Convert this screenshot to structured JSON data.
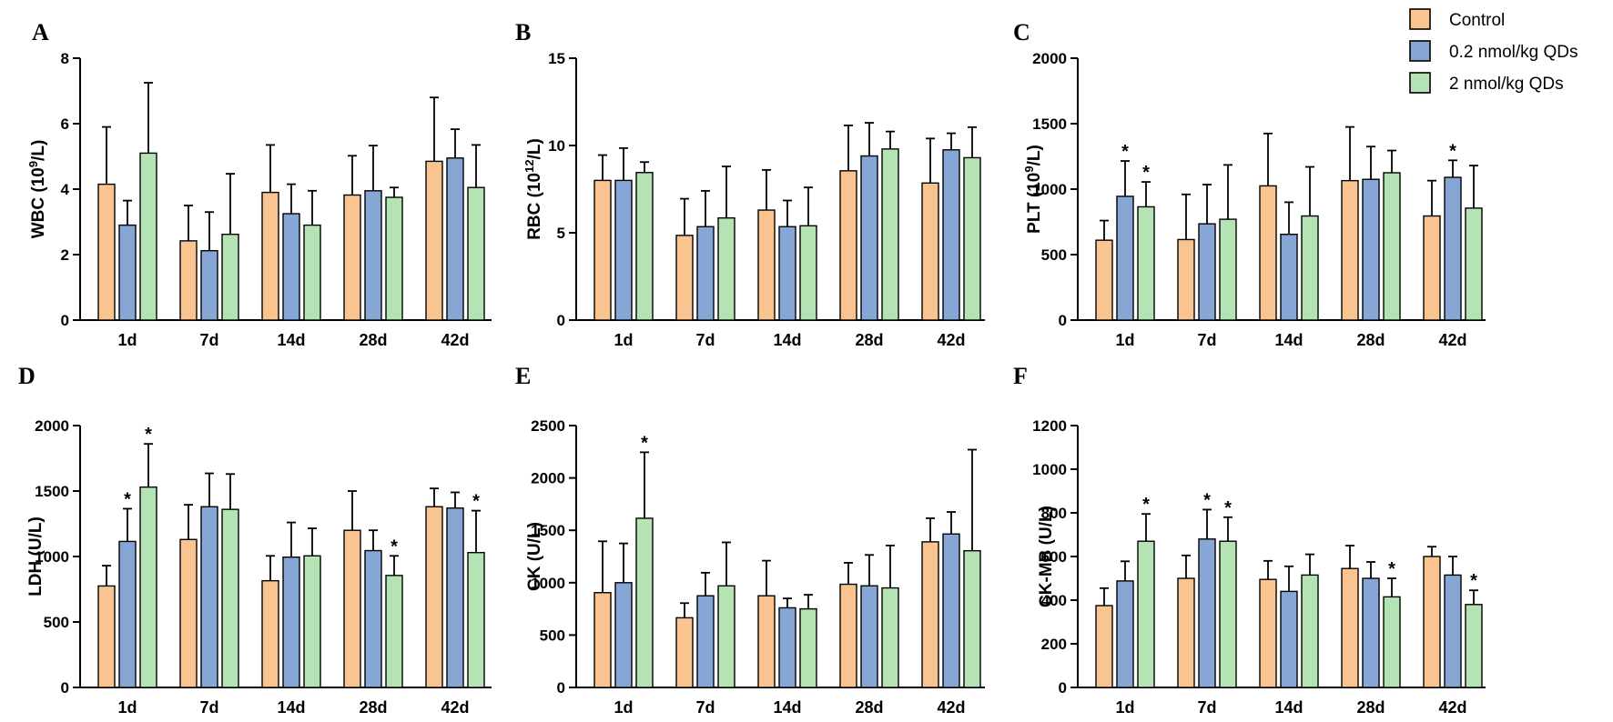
{
  "legend": [
    {
      "label": "Control",
      "color": "#f9c48f"
    },
    {
      "label": "0.2 nmol/kg QDs",
      "color": "#86a6d6"
    },
    {
      "label": "2 nmol/kg QDs",
      "color": "#b4e3b4"
    }
  ],
  "chart_data": [
    {
      "type": "bar",
      "panel": "A",
      "ylabel": {
        "pre": "WBC (10",
        "sup": "9",
        "post": "/L)"
      },
      "categories": [
        "1d",
        "7d",
        "14d",
        "28d",
        "42d"
      ],
      "ylim": [
        0,
        8
      ],
      "yticks": [
        0,
        2,
        4,
        6,
        8
      ],
      "series": [
        {
          "name": "Control",
          "values": [
            4.15,
            2.42,
            3.9,
            3.82,
            4.85
          ],
          "errors": [
            1.75,
            1.08,
            1.45,
            1.2,
            1.95
          ],
          "sig": [
            false,
            false,
            false,
            false,
            false
          ]
        },
        {
          "name": "0.2 nmol/kg QDs",
          "values": [
            2.9,
            2.12,
            3.25,
            3.95,
            4.95
          ],
          "errors": [
            0.75,
            1.18,
            0.9,
            1.38,
            0.88
          ],
          "sig": [
            false,
            false,
            false,
            false,
            false
          ]
        },
        {
          "name": "2 nmol/kg QDs",
          "values": [
            5.1,
            2.62,
            2.9,
            3.75,
            4.05
          ],
          "errors": [
            2.15,
            1.85,
            1.05,
            0.3,
            1.3
          ],
          "sig": [
            false,
            false,
            false,
            false,
            false
          ]
        }
      ]
    },
    {
      "type": "bar",
      "panel": "B",
      "ylabel": {
        "pre": "RBC (10",
        "sup": "12",
        "post": "/L)"
      },
      "categories": [
        "1d",
        "7d",
        "14d",
        "28d",
        "42d"
      ],
      "ylim": [
        0,
        15
      ],
      "yticks": [
        0,
        5,
        10,
        15
      ],
      "series": [
        {
          "name": "Control",
          "values": [
            8.0,
            4.85,
            6.3,
            8.55,
            7.85
          ],
          "errors": [
            1.45,
            2.1,
            2.3,
            2.6,
            2.55
          ],
          "sig": [
            false,
            false,
            false,
            false,
            false
          ]
        },
        {
          "name": "0.2 nmol/kg QDs",
          "values": [
            8.0,
            5.35,
            5.35,
            9.4,
            9.75
          ],
          "errors": [
            1.85,
            2.05,
            1.5,
            1.9,
            0.95
          ],
          "sig": [
            false,
            false,
            false,
            false,
            false
          ]
        },
        {
          "name": "2 nmol/kg QDs",
          "values": [
            8.45,
            5.85,
            5.4,
            9.8,
            9.3
          ],
          "errors": [
            0.6,
            2.95,
            2.2,
            1.0,
            1.75
          ],
          "sig": [
            false,
            false,
            false,
            false,
            false
          ]
        }
      ]
    },
    {
      "type": "bar",
      "panel": "C",
      "ylabel": {
        "pre": "PLT (10",
        "sup": "9",
        "post": "/L)"
      },
      "categories": [
        "1d",
        "7d",
        "14d",
        "28d",
        "42d"
      ],
      "ylim": [
        0,
        2000
      ],
      "yticks": [
        0,
        500,
        1000,
        1500,
        2000
      ],
      "series": [
        {
          "name": "Control",
          "values": [
            610,
            615,
            1025,
            1065,
            795
          ],
          "errors": [
            150,
            345,
            400,
            410,
            270
          ],
          "sig": [
            false,
            false,
            false,
            false,
            false
          ]
        },
        {
          "name": "0.2 nmol/kg QDs",
          "values": [
            945,
            735,
            655,
            1075,
            1090
          ],
          "errors": [
            270,
            300,
            245,
            250,
            130
          ],
          "sig": [
            true,
            false,
            false,
            false,
            true
          ]
        },
        {
          "name": "2 nmol/kg QDs",
          "values": [
            865,
            770,
            795,
            1125,
            855
          ],
          "errors": [
            190,
            415,
            375,
            170,
            325
          ],
          "sig": [
            true,
            false,
            false,
            false,
            false
          ]
        }
      ]
    },
    {
      "type": "bar",
      "panel": "D",
      "ylabel": {
        "pre": "LDH (U/L)",
        "sup": "",
        "post": ""
      },
      "categories": [
        "1d",
        "7d",
        "14d",
        "28d",
        "42d"
      ],
      "ylim": [
        0,
        2000
      ],
      "yticks": [
        0,
        500,
        1000,
        1500,
        2000
      ],
      "series": [
        {
          "name": "Control",
          "values": [
            775,
            1130,
            815,
            1200,
            1380
          ],
          "errors": [
            155,
            265,
            190,
            300,
            140
          ],
          "sig": [
            false,
            false,
            false,
            false,
            false
          ]
        },
        {
          "name": "0.2 nmol/kg QDs",
          "values": [
            1115,
            1380,
            995,
            1045,
            1370
          ],
          "errors": [
            250,
            255,
            265,
            155,
            120
          ],
          "sig": [
            true,
            false,
            false,
            false,
            false
          ]
        },
        {
          "name": "2 nmol/kg QDs",
          "values": [
            1530,
            1360,
            1005,
            855,
            1030
          ],
          "errors": [
            330,
            270,
            210,
            150,
            320
          ],
          "sig": [
            true,
            false,
            false,
            true,
            true
          ]
        }
      ]
    },
    {
      "type": "bar",
      "panel": "E",
      "ylabel": {
        "pre": "CK (U/L)",
        "sup": "",
        "post": ""
      },
      "categories": [
        "1d",
        "7d",
        "14d",
        "28d",
        "42d"
      ],
      "ylim": [
        0,
        2500
      ],
      "yticks": [
        0,
        500,
        1000,
        1500,
        2000,
        2500
      ],
      "series": [
        {
          "name": "Control",
          "values": [
            905,
            665,
            875,
            985,
            1390
          ],
          "errors": [
            490,
            140,
            335,
            205,
            225
          ],
          "sig": [
            false,
            false,
            false,
            false,
            false
          ]
        },
        {
          "name": "0.2 nmol/kg QDs",
          "values": [
            1000,
            875,
            760,
            970,
            1465
          ],
          "errors": [
            375,
            220,
            90,
            295,
            210
          ],
          "sig": [
            false,
            false,
            false,
            false,
            false
          ]
        },
        {
          "name": "2 nmol/kg QDs",
          "values": [
            1615,
            970,
            750,
            950,
            1305
          ],
          "errors": [
            630,
            415,
            135,
            405,
            965
          ],
          "sig": [
            true,
            false,
            false,
            false,
            false
          ]
        }
      ]
    },
    {
      "type": "bar",
      "panel": "F",
      "ylabel": {
        "pre": "CK-MB (U/L)",
        "sup": "",
        "post": ""
      },
      "categories": [
        "1d",
        "7d",
        "14d",
        "28d",
        "42d"
      ],
      "ylim": [
        0,
        1200
      ],
      "yticks": [
        0,
        200,
        400,
        600,
        800,
        1000,
        1200
      ],
      "series": [
        {
          "name": "Control",
          "values": [
            375,
            500,
            495,
            545,
            600
          ],
          "errors": [
            80,
            105,
            85,
            105,
            45
          ],
          "sig": [
            false,
            false,
            false,
            false,
            false
          ]
        },
        {
          "name": "0.2 nmol/kg QDs",
          "values": [
            488,
            680,
            440,
            500,
            515
          ],
          "errors": [
            90,
            135,
            115,
            75,
            85
          ],
          "sig": [
            false,
            true,
            false,
            false,
            false
          ]
        },
        {
          "name": "2 nmol/kg QDs",
          "values": [
            670,
            670,
            515,
            415,
            380
          ],
          "errors": [
            125,
            110,
            95,
            85,
            65
          ],
          "sig": [
            true,
            true,
            false,
            true,
            true
          ]
        }
      ]
    }
  ]
}
